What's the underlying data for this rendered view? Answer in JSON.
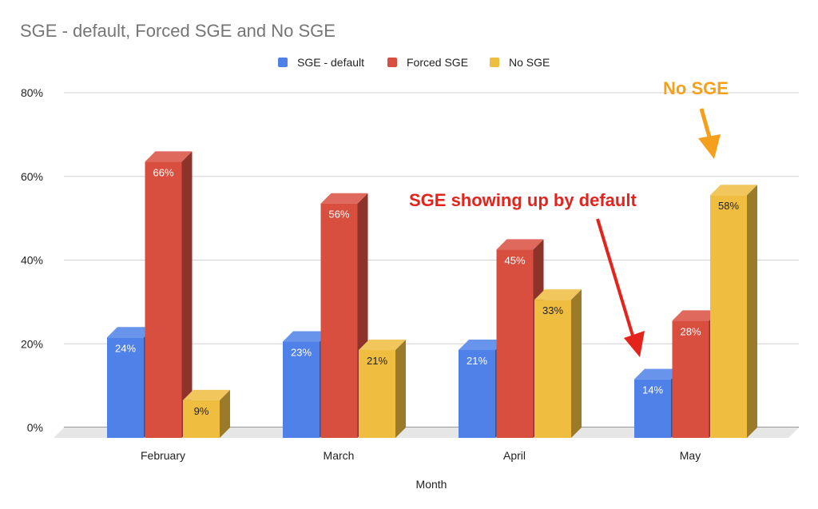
{
  "chart_data": {
    "type": "bar",
    "style": "3d-clustered-column",
    "title": "SGE - default, Forced SGE and No SGE",
    "xlabel": "Month",
    "ylabel": "",
    "categories": [
      "February",
      "March",
      "April",
      "May"
    ],
    "series": [
      {
        "name": "SGE - default",
        "color": "#4f81e8",
        "values": [
          24,
          23,
          21,
          14
        ],
        "labels": [
          "24%",
          "23%",
          "21%",
          "14%"
        ]
      },
      {
        "name": "Forced SGE",
        "color": "#d94f3f",
        "values": [
          66,
          56,
          45,
          28
        ],
        "labels": [
          "66%",
          "56%",
          "45%",
          "28%"
        ]
      },
      {
        "name": "No SGE",
        "color": "#efbd40",
        "values": [
          9,
          21,
          33,
          58
        ],
        "labels": [
          "9%",
          "21%",
          "33%",
          "58%"
        ]
      }
    ],
    "ylim": [
      0,
      80
    ],
    "yticks": [
      "0%",
      "20%",
      "40%",
      "60%",
      "80%"
    ],
    "grid": true,
    "legend_position": "top",
    "annotations": [
      {
        "text": "SGE showing up by default",
        "color": "#e3231c",
        "points_to": "May SGE - default"
      },
      {
        "text": "No SGE",
        "color": "#f5a01d",
        "points_to": "May No SGE"
      }
    ]
  }
}
